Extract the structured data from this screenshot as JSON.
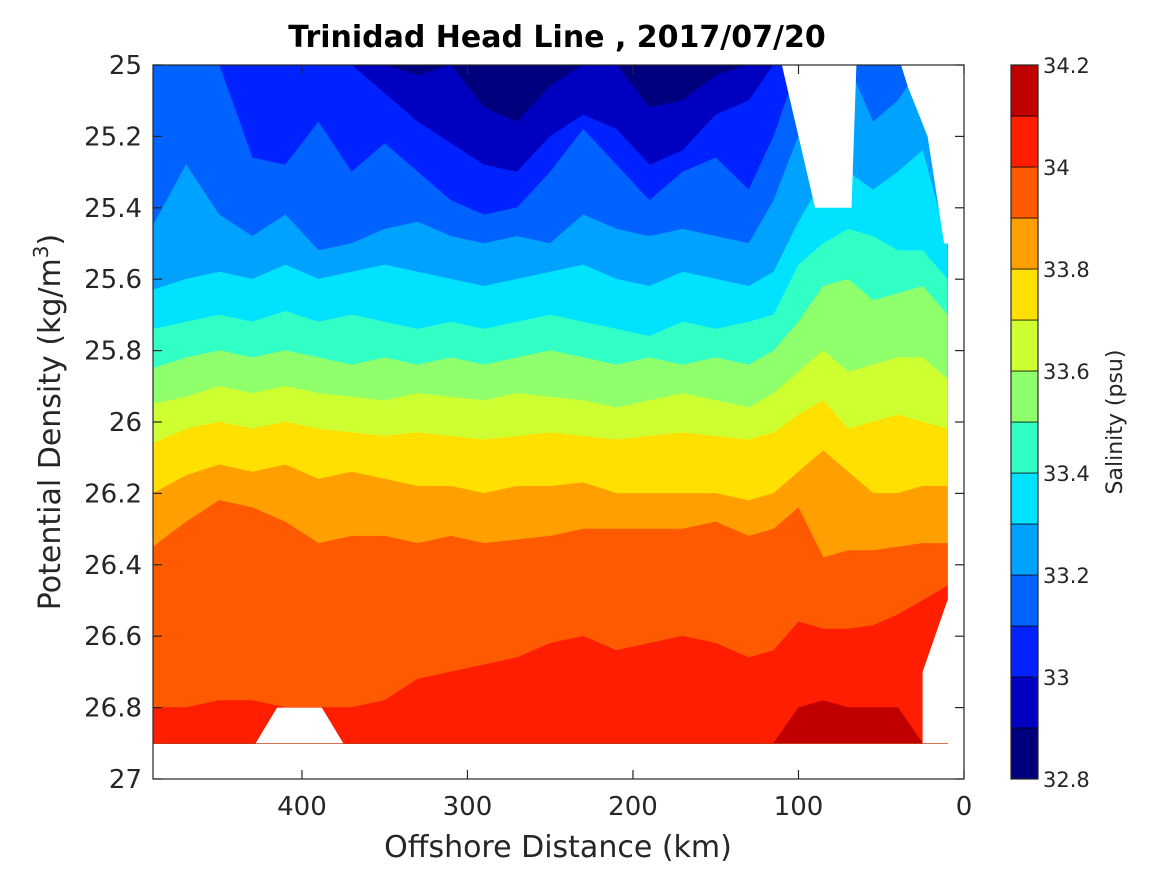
{
  "chart_data": {
    "type": "contourf",
    "title": "Trinidad Head Line , 2017/07/20",
    "xlabel": "Offshore Distance (km)",
    "ylabel": "Potential Density (kg/m³)",
    "ylabel_parts": {
      "before": "Potential Density (kg/m",
      "sup": "3",
      "after": ")"
    },
    "colorbar_label": "Salinity (psu)",
    "xlim": [
      490,
      0
    ],
    "x_reversed": true,
    "ylim": [
      25,
      27
    ],
    "y_reversed": true,
    "x_ticks": [
      400,
      300,
      200,
      100,
      0
    ],
    "x_tick_labels": [
      "400",
      "300",
      "200",
      "100",
      "0"
    ],
    "y_ticks": [
      25,
      25.2,
      25.4,
      25.6,
      25.8,
      26,
      26.2,
      26.4,
      26.6,
      26.8,
      27
    ],
    "y_tick_labels": [
      "25",
      "25.2",
      "25.4",
      "25.6",
      "25.8",
      "26",
      "26.2",
      "26.4",
      "26.6",
      "26.8",
      "27"
    ],
    "color_levels": [
      32.8,
      32.9,
      33.0,
      33.1,
      33.2,
      33.3,
      33.4,
      33.5,
      33.6,
      33.7,
      33.8,
      33.9,
      34.0,
      34.1,
      34.2
    ],
    "color_ticks": [
      32.8,
      33,
      33.2,
      33.4,
      33.6,
      33.8,
      34,
      34.2
    ],
    "color_tick_labels": [
      "32.8",
      "33",
      "33.2",
      "33.4",
      "33.6",
      "33.8",
      "34",
      "34.2"
    ],
    "colormap": [
      "#00007f",
      "#0000c0",
      "#0022ff",
      "#0062ff",
      "#00a2ff",
      "#00e2ff",
      "#31ffc6",
      "#8fff6b",
      "#ceff31",
      "#ffe000",
      "#ffa000",
      "#ff5a00",
      "#ff1e00",
      "#c00000"
    ],
    "data_extent": {
      "x_min": 10,
      "x_max": 490,
      "y_min": 25,
      "y_max": 26.9
    },
    "columns_x": [
      490,
      470,
      450,
      430,
      410,
      390,
      370,
      350,
      330,
      310,
      290,
      270,
      250,
      230,
      210,
      190,
      170,
      150,
      130,
      115,
      100,
      85,
      70,
      55,
      40,
      25,
      10
    ],
    "isopycnals": [
      {
        "level": 32.9,
        "y": [
          25.0,
          25.0,
          25.0,
          25.0,
          25.0,
          25.0,
          25.0,
          25.0,
          25.03,
          25.0,
          25.12,
          25.16,
          25.06,
          25.0,
          25.0,
          25.12,
          25.1,
          25.03,
          25.0,
          25.0,
          25.0,
          25.0,
          25.0,
          25.0,
          25.0,
          25.0,
          25.0
        ]
      },
      {
        "level": 33.0,
        "y": [
          25.0,
          25.0,
          25.0,
          25.0,
          25.0,
          25.0,
          25.0,
          25.08,
          25.16,
          25.22,
          25.28,
          25.3,
          25.2,
          25.14,
          25.18,
          25.28,
          25.24,
          25.14,
          25.1,
          25.0,
          25.0,
          25.0,
          25.0,
          25.0,
          25.0,
          25.0,
          25.0
        ]
      },
      {
        "level": 33.1,
        "y": [
          25.0,
          25.0,
          25.0,
          25.26,
          25.28,
          25.16,
          25.3,
          25.22,
          25.3,
          25.38,
          25.42,
          25.4,
          25.3,
          25.18,
          25.28,
          25.38,
          25.3,
          25.26,
          25.35,
          25.2,
          25.0,
          25.0,
          25.0,
          25.0,
          25.0,
          25.0,
          25.0
        ]
      },
      {
        "level": 33.2,
        "y": [
          25.45,
          25.28,
          25.42,
          25.48,
          25.42,
          25.52,
          25.5,
          25.46,
          25.44,
          25.48,
          25.5,
          25.48,
          25.5,
          25.42,
          25.46,
          25.48,
          25.46,
          25.48,
          25.5,
          25.38,
          25.2,
          25.0,
          25.0,
          25.16,
          25.1,
          25.0,
          25.0
        ]
      },
      {
        "level": 33.3,
        "y": [
          25.63,
          25.6,
          25.58,
          25.6,
          25.56,
          25.6,
          25.58,
          25.56,
          25.58,
          25.6,
          25.62,
          25.6,
          25.58,
          25.56,
          25.6,
          25.62,
          25.58,
          25.6,
          25.62,
          25.58,
          25.44,
          25.32,
          25.3,
          25.35,
          25.3,
          25.24,
          25.5
        ]
      },
      {
        "level": 33.4,
        "y": [
          25.74,
          25.72,
          25.7,
          25.72,
          25.69,
          25.72,
          25.7,
          25.72,
          25.74,
          25.72,
          25.74,
          25.72,
          25.7,
          25.72,
          25.74,
          25.76,
          25.72,
          25.74,
          25.72,
          25.7,
          25.56,
          25.5,
          25.46,
          25.48,
          25.52,
          25.52,
          25.6
        ]
      },
      {
        "level": 33.5,
        "y": [
          25.85,
          25.82,
          25.8,
          25.82,
          25.8,
          25.82,
          25.84,
          25.82,
          25.84,
          25.82,
          25.84,
          25.82,
          25.8,
          25.82,
          25.84,
          25.82,
          25.84,
          25.82,
          25.84,
          25.8,
          25.72,
          25.62,
          25.6,
          25.66,
          25.64,
          25.62,
          25.7
        ]
      },
      {
        "level": 33.6,
        "y": [
          25.95,
          25.93,
          25.9,
          25.92,
          25.9,
          25.92,
          25.93,
          25.94,
          25.92,
          25.93,
          25.94,
          25.92,
          25.93,
          25.94,
          25.96,
          25.94,
          25.92,
          25.94,
          25.96,
          25.92,
          25.86,
          25.8,
          25.86,
          25.84,
          25.82,
          25.82,
          25.88
        ]
      },
      {
        "level": 33.7,
        "y": [
          26.06,
          26.02,
          26.0,
          26.02,
          26.0,
          26.02,
          26.03,
          26.04,
          26.03,
          26.04,
          26.05,
          26.04,
          26.03,
          26.04,
          26.05,
          26.04,
          26.03,
          26.04,
          26.05,
          26.03,
          25.98,
          25.94,
          26.02,
          26.0,
          25.98,
          26.0,
          26.02
        ]
      },
      {
        "level": 33.8,
        "y": [
          26.2,
          26.15,
          26.12,
          26.14,
          26.12,
          26.16,
          26.14,
          26.16,
          26.18,
          26.18,
          26.2,
          26.18,
          26.18,
          26.17,
          26.2,
          26.2,
          26.2,
          26.2,
          26.22,
          26.2,
          26.14,
          26.08,
          26.14,
          26.2,
          26.2,
          26.18,
          26.18
        ]
      },
      {
        "level": 33.9,
        "y": [
          26.35,
          26.28,
          26.22,
          26.24,
          26.28,
          26.34,
          26.32,
          26.32,
          26.34,
          26.32,
          26.34,
          26.33,
          26.32,
          26.3,
          26.3,
          26.3,
          26.3,
          26.28,
          26.32,
          26.3,
          26.24,
          26.38,
          26.36,
          26.36,
          26.35,
          26.34,
          26.34
        ]
      },
      {
        "level": 34.0,
        "y": [
          26.8,
          26.8,
          26.78,
          26.78,
          26.8,
          26.8,
          26.8,
          26.78,
          26.72,
          26.7,
          26.68,
          26.66,
          26.62,
          26.6,
          26.64,
          26.62,
          26.6,
          26.62,
          26.66,
          26.64,
          26.56,
          26.58,
          26.58,
          26.57,
          26.54,
          26.5,
          26.46
        ]
      },
      {
        "level": 34.1,
        "y": [
          26.9,
          26.9,
          26.9,
          26.9,
          26.9,
          26.9,
          26.9,
          26.9,
          26.9,
          26.9,
          26.9,
          26.9,
          26.9,
          26.9,
          26.9,
          26.9,
          26.9,
          26.9,
          26.9,
          26.9,
          26.8,
          26.78,
          26.8,
          26.8,
          26.8,
          26.9,
          26.9
        ]
      }
    ],
    "missing_regions": [
      {
        "name": "surface-gap-left",
        "polygon": [
          [
            110,
            25.0
          ],
          [
            65,
            25.0
          ],
          [
            68,
            25.4
          ],
          [
            90,
            25.4
          ],
          [
            100,
            25.2
          ]
        ]
      },
      {
        "name": "surface-gap-right",
        "polygon": [
          [
            38,
            25.0
          ],
          [
            0,
            25.0
          ],
          [
            0,
            25.5
          ],
          [
            12,
            25.5
          ],
          [
            22,
            25.2
          ],
          [
            34,
            25.06
          ]
        ]
      },
      {
        "name": "bottom-gap",
        "polygon": [
          [
            428,
            26.9
          ],
          [
            415,
            26.8
          ],
          [
            388,
            26.8
          ],
          [
            375,
            26.9
          ]
        ]
      },
      {
        "name": "coastal-gap",
        "polygon": [
          [
            10,
            26.5
          ],
          [
            0,
            26.5
          ],
          [
            0,
            26.9
          ],
          [
            25,
            26.9
          ],
          [
            25,
            26.7
          ]
        ]
      }
    ]
  }
}
